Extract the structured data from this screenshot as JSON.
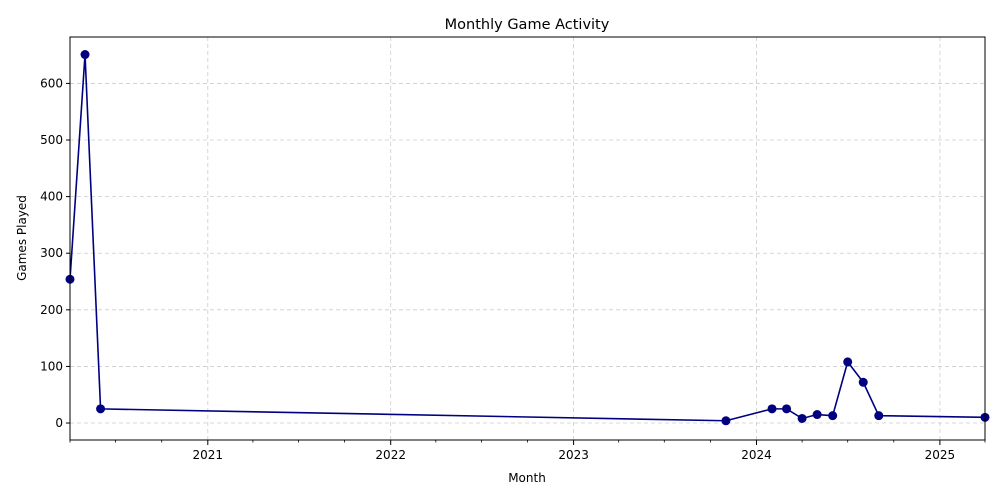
{
  "chart_data": {
    "type": "line",
    "title": "Monthly Game Activity",
    "xlabel": "Month",
    "ylabel": "Games Played",
    "x_type": "date",
    "x_range": [
      "2020-04-01",
      "2025-04-01"
    ],
    "ylim": [
      -30,
      682
    ],
    "grid": true,
    "grid_style": "dashed",
    "legend": null,
    "marker": "circle",
    "color": "#000080",
    "x_ticks": [
      {
        "date": "2021-01-01",
        "label": "2021"
      },
      {
        "date": "2022-01-01",
        "label": "2022"
      },
      {
        "date": "2023-01-01",
        "label": "2023"
      },
      {
        "date": "2024-01-01",
        "label": "2024"
      },
      {
        "date": "2025-01-01",
        "label": "2025"
      }
    ],
    "y_ticks": [
      0,
      100,
      200,
      300,
      400,
      500,
      600
    ],
    "points": [
      {
        "x": "2020-04-01",
        "y": 254
      },
      {
        "x": "2020-05-01",
        "y": 651
      },
      {
        "x": "2020-06-01",
        "y": 25
      },
      {
        "x": "2023-11-01",
        "y": 4
      },
      {
        "x": "2024-02-01",
        "y": 25
      },
      {
        "x": "2024-03-01",
        "y": 25
      },
      {
        "x": "2024-04-01",
        "y": 8
      },
      {
        "x": "2024-05-01",
        "y": 15
      },
      {
        "x": "2024-06-01",
        "y": 13
      },
      {
        "x": "2024-07-01",
        "y": 108
      },
      {
        "x": "2024-08-01",
        "y": 72
      },
      {
        "x": "2024-09-01",
        "y": 13
      },
      {
        "x": "2025-04-01",
        "y": 10
      }
    ]
  }
}
